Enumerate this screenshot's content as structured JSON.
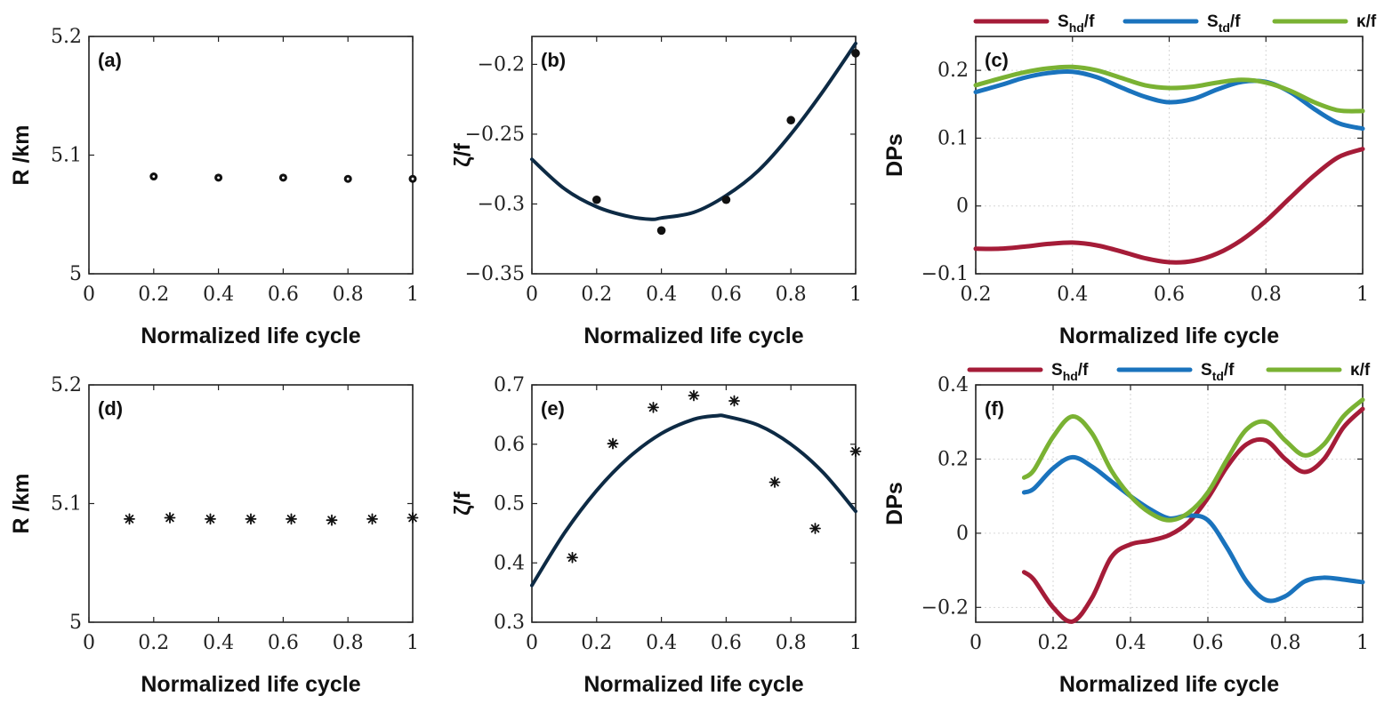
{
  "chart_data": [
    {
      "id": "a",
      "type": "scatter",
      "panel_label": "(a)",
      "xlabel": "Normalized life cycle",
      "ylabel": "R /km",
      "xlim": [
        0,
        1
      ],
      "ylim": [
        5,
        5.2
      ],
      "xticks": [
        0,
        0.2,
        0.4,
        0.6,
        0.8,
        1
      ],
      "xticklabels": [
        "0",
        "0.2",
        "0.4",
        "0.6",
        "0.8",
        "1"
      ],
      "yticks": [
        5,
        5.1,
        5.2
      ],
      "yticklabels": [
        "5",
        "5.1",
        "5.2"
      ],
      "grid": false,
      "marker": "ring",
      "points": [
        [
          0.2,
          5.082
        ],
        [
          0.4,
          5.081
        ],
        [
          0.6,
          5.081
        ],
        [
          0.8,
          5.08
        ],
        [
          1.0,
          5.08
        ]
      ]
    },
    {
      "id": "b",
      "type": "scatter",
      "panel_label": "(b)",
      "xlabel": "Normalized life cycle",
      "ylabel": "ζ/f",
      "xlim": [
        0,
        1
      ],
      "ylim": [
        -0.35,
        -0.18
      ],
      "xticks": [
        0,
        0.2,
        0.4,
        0.6,
        0.8,
        1
      ],
      "xticklabels": [
        "0",
        "0.2",
        "0.4",
        "0.6",
        "0.8",
        "1"
      ],
      "yticks": [
        -0.35,
        -0.3,
        -0.25,
        -0.2
      ],
      "yticklabels": [
        "−0.35",
        "−0.3",
        "−0.25",
        "−0.2"
      ],
      "grid": false,
      "marker": "dot",
      "points": [
        [
          0.2,
          -0.297
        ],
        [
          0.4,
          -0.319
        ],
        [
          0.6,
          -0.297
        ],
        [
          0.8,
          -0.24
        ],
        [
          1.0,
          -0.192
        ]
      ],
      "fit": {
        "name": "quadratic fit",
        "color": "#0d2a44",
        "x": [
          0,
          0.1,
          0.2,
          0.3,
          0.37,
          0.4,
          0.5,
          0.6,
          0.7,
          0.8,
          0.9,
          1.0
        ],
        "y": [
          -0.268,
          -0.289,
          -0.302,
          -0.309,
          -0.311,
          -0.31,
          -0.306,
          -0.294,
          -0.276,
          -0.25,
          -0.219,
          -0.185
        ]
      }
    },
    {
      "id": "c",
      "type": "line",
      "panel_label": "(c)",
      "xlabel": "Normalized life cycle",
      "ylabel": "DPs",
      "xlim": [
        0.2,
        1
      ],
      "ylim": [
        -0.1,
        0.25
      ],
      "xticks": [
        0.2,
        0.4,
        0.6,
        0.8,
        1
      ],
      "xticklabels": [
        "0.2",
        "0.4",
        "0.6",
        "0.8",
        "1"
      ],
      "yticks": [
        -0.1,
        0,
        0.1,
        0.2
      ],
      "yticklabels": [
        "−0.1",
        "0",
        "0.1",
        "0.2"
      ],
      "grid": true,
      "legend": "top, outside",
      "series": [
        {
          "name": "S_hd/f",
          "main": "S",
          "sub": "hd",
          "tail": "/f",
          "color": "#a51c38",
          "x": [
            0.2,
            0.25,
            0.3,
            0.35,
            0.4,
            0.45,
            0.5,
            0.55,
            0.6,
            0.65,
            0.7,
            0.75,
            0.8,
            0.85,
            0.9,
            0.95,
            1.0
          ],
          "y": [
            -0.063,
            -0.063,
            -0.06,
            -0.056,
            -0.054,
            -0.058,
            -0.067,
            -0.077,
            -0.083,
            -0.081,
            -0.07,
            -0.05,
            -0.022,
            0.012,
            0.045,
            0.072,
            0.084
          ]
        },
        {
          "name": "S_td/f",
          "main": "S",
          "sub": "td",
          "tail": "/f",
          "color": "#1a73bd",
          "x": [
            0.2,
            0.25,
            0.3,
            0.35,
            0.4,
            0.45,
            0.5,
            0.55,
            0.6,
            0.65,
            0.7,
            0.75,
            0.8,
            0.85,
            0.9,
            0.95,
            1.0
          ],
          "y": [
            0.168,
            0.178,
            0.189,
            0.196,
            0.198,
            0.19,
            0.175,
            0.161,
            0.153,
            0.158,
            0.172,
            0.183,
            0.183,
            0.168,
            0.143,
            0.122,
            0.114
          ]
        },
        {
          "name": "κ/f",
          "main": "κ",
          "sub": "",
          "tail": "/f",
          "color": "#7ab233",
          "x": [
            0.2,
            0.25,
            0.3,
            0.35,
            0.4,
            0.45,
            0.5,
            0.55,
            0.6,
            0.65,
            0.7,
            0.75,
            0.8,
            0.85,
            0.9,
            0.95,
            1.0
          ],
          "y": [
            0.178,
            0.188,
            0.197,
            0.203,
            0.205,
            0.2,
            0.189,
            0.178,
            0.174,
            0.176,
            0.182,
            0.186,
            0.182,
            0.17,
            0.153,
            0.141,
            0.14
          ]
        }
      ]
    },
    {
      "id": "d",
      "type": "scatter",
      "panel_label": "(d)",
      "xlabel": "Normalized life cycle",
      "ylabel": "R /km",
      "xlim": [
        0,
        1
      ],
      "ylim": [
        5,
        5.2
      ],
      "xticks": [
        0,
        0.2,
        0.4,
        0.6,
        0.8,
        1
      ],
      "xticklabels": [
        "0",
        "0.2",
        "0.4",
        "0.6",
        "0.8",
        "1"
      ],
      "yticks": [
        5,
        5.1,
        5.2
      ],
      "yticklabels": [
        "5",
        "5.1",
        "5.2"
      ],
      "grid": false,
      "marker": "star",
      "points": [
        [
          0.125,
          5.087
        ],
        [
          0.25,
          5.088
        ],
        [
          0.375,
          5.087
        ],
        [
          0.5,
          5.087
        ],
        [
          0.625,
          5.087
        ],
        [
          0.75,
          5.086
        ],
        [
          0.875,
          5.087
        ],
        [
          1.0,
          5.088
        ]
      ]
    },
    {
      "id": "e",
      "type": "scatter",
      "panel_label": "(e)",
      "xlabel": "Normalized life cycle",
      "ylabel": "ζ/f",
      "xlim": [
        0,
        1
      ],
      "ylim": [
        0.3,
        0.7
      ],
      "xticks": [
        0,
        0.2,
        0.4,
        0.6,
        0.8,
        1
      ],
      "xticklabels": [
        "0",
        "0.2",
        "0.4",
        "0.6",
        "0.8",
        "1"
      ],
      "yticks": [
        0.3,
        0.4,
        0.5,
        0.6,
        0.7
      ],
      "yticklabels": [
        "0.3",
        "0.4",
        "0.5",
        "0.6",
        "0.7"
      ],
      "grid": false,
      "marker": "star",
      "points": [
        [
          0.125,
          0.409
        ],
        [
          0.25,
          0.601
        ],
        [
          0.375,
          0.662
        ],
        [
          0.5,
          0.682
        ],
        [
          0.625,
          0.673
        ],
        [
          0.75,
          0.536
        ],
        [
          0.875,
          0.458
        ],
        [
          1.0,
          0.588
        ]
      ],
      "fit": {
        "name": "quadratic fit",
        "color": "#0d2a44",
        "x": [
          0,
          0.1,
          0.2,
          0.3,
          0.4,
          0.5,
          0.57,
          0.6,
          0.7,
          0.8,
          0.9,
          1.0
        ],
        "y": [
          0.362,
          0.45,
          0.522,
          0.578,
          0.618,
          0.642,
          0.648,
          0.647,
          0.632,
          0.6,
          0.552,
          0.487
        ]
      }
    },
    {
      "id": "f",
      "type": "line",
      "panel_label": "(f)",
      "xlabel": "Normalized life cycle",
      "ylabel": "DPs",
      "xlim": [
        0,
        1
      ],
      "ylim": [
        -0.24,
        0.4
      ],
      "xticks": [
        0,
        0.2,
        0.4,
        0.6,
        0.8,
        1
      ],
      "xticklabels": [
        "0",
        "0.2",
        "0.4",
        "0.6",
        "0.8",
        "1"
      ],
      "yticks": [
        -0.2,
        0,
        0.2,
        0.4
      ],
      "yticklabels": [
        "−0.2",
        "0",
        "0.2",
        "0.4"
      ],
      "grid": true,
      "legend": "top, outside",
      "series": [
        {
          "name": "S_hd/f",
          "main": "S",
          "sub": "hd",
          "tail": "/f",
          "color": "#a51c38",
          "x": [
            0.125,
            0.15,
            0.2,
            0.25,
            0.3,
            0.35,
            0.4,
            0.45,
            0.5,
            0.55,
            0.6,
            0.65,
            0.7,
            0.75,
            0.8,
            0.85,
            0.9,
            0.95,
            1.0
          ],
          "y": [
            -0.105,
            -0.125,
            -0.2,
            -0.238,
            -0.175,
            -0.065,
            -0.03,
            -0.02,
            -0.005,
            0.03,
            0.095,
            0.18,
            0.24,
            0.25,
            0.2,
            0.165,
            0.2,
            0.285,
            0.335
          ]
        },
        {
          "name": "S_td/f",
          "main": "S",
          "sub": "td",
          "tail": "/f",
          "color": "#1a73bd",
          "x": [
            0.125,
            0.15,
            0.2,
            0.25,
            0.3,
            0.35,
            0.4,
            0.45,
            0.5,
            0.55,
            0.6,
            0.65,
            0.7,
            0.75,
            0.8,
            0.85,
            0.9,
            0.95,
            1.0
          ],
          "y": [
            0.11,
            0.12,
            0.175,
            0.205,
            0.18,
            0.14,
            0.1,
            0.065,
            0.04,
            0.048,
            0.035,
            -0.04,
            -0.13,
            -0.18,
            -0.17,
            -0.13,
            -0.12,
            -0.125,
            -0.132
          ]
        },
        {
          "name": "κ/f",
          "main": "κ",
          "sub": "",
          "tail": "/f",
          "color": "#7ab233",
          "x": [
            0.125,
            0.15,
            0.2,
            0.25,
            0.3,
            0.35,
            0.4,
            0.45,
            0.5,
            0.55,
            0.6,
            0.65,
            0.7,
            0.75,
            0.8,
            0.85,
            0.9,
            0.95,
            1.0
          ],
          "y": [
            0.15,
            0.17,
            0.26,
            0.315,
            0.27,
            0.17,
            0.1,
            0.055,
            0.035,
            0.055,
            0.11,
            0.2,
            0.28,
            0.3,
            0.25,
            0.21,
            0.24,
            0.315,
            0.36
          ]
        }
      ]
    }
  ]
}
